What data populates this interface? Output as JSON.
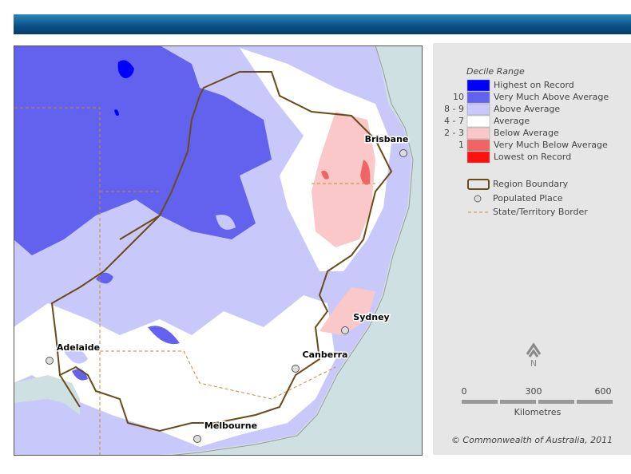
{
  "legend": {
    "title": "Decile Range",
    "items": [
      {
        "label": "Highest on Record",
        "color": "#0000ff"
      },
      {
        "decile": "10",
        "label": "Very Much Above Average",
        "color": "#6262ee"
      },
      {
        "decile": "8 - 9",
        "label": "Above Average",
        "color": "#c8c8fa"
      },
      {
        "decile": "4 - 7",
        "label": "Average",
        "color": "#ffffff"
      },
      {
        "decile": "2 - 3",
        "label": "Below Average",
        "color": "#fac8c8"
      },
      {
        "decile": "1",
        "label": "Very Much Below Average",
        "color": "#f06464"
      },
      {
        "label": "Lowest on Record",
        "color": "#ff1010"
      }
    ],
    "symbols": [
      {
        "label": "Region Boundary"
      },
      {
        "label": "Populated Place"
      },
      {
        "label": "State/Territory Border"
      }
    ]
  },
  "places": [
    "Brisbane",
    "Sydney",
    "Canberra",
    "Adelaide",
    "Melbourne"
  ],
  "north": "N",
  "scale": {
    "ticks": [
      0,
      300,
      600
    ],
    "unit": "Kilometres"
  },
  "copyright": "© Commonwealth of Australia, 2011"
}
